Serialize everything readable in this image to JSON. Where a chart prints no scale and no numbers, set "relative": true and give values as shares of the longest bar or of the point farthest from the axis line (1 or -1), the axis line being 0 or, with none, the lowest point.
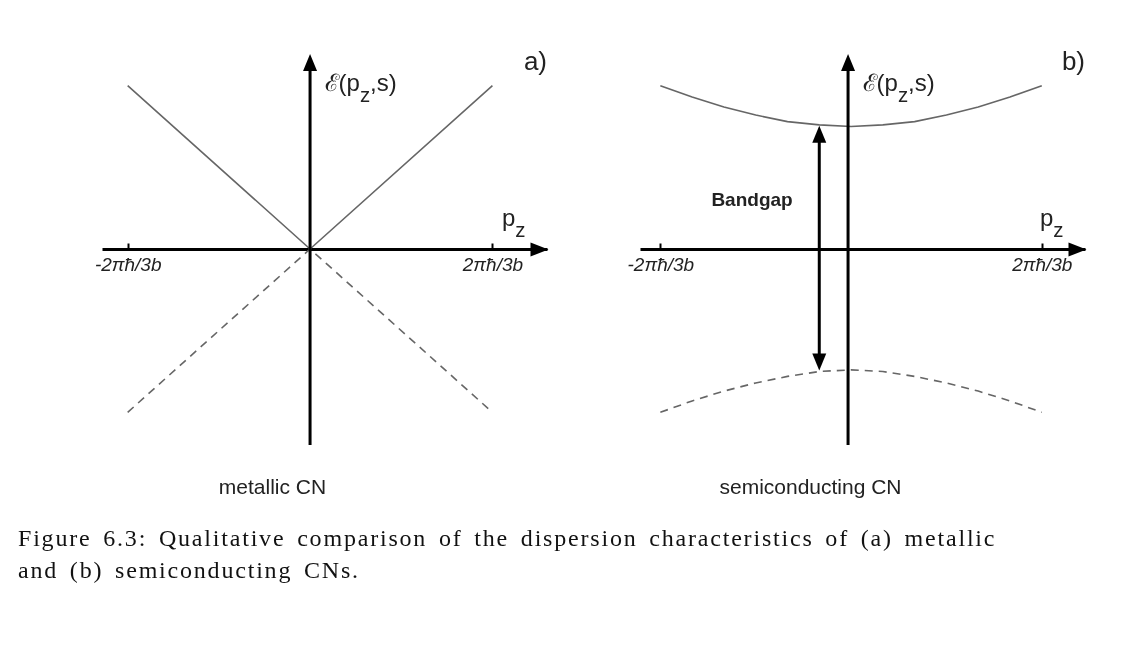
{
  "chart_data": [
    {
      "type": "line",
      "title": "metallic CN",
      "xlabel": "p$_{z}$",
      "ylabel": "ℰ(p$_{z}$,s)",
      "relative": true,
      "tick_labels": "x",
      "categories": [
        "-2πħ/3b",
        null,
        "2πħ/3b"
      ],
      "annotations": [
        "a)"
      ],
      "series": [
        {
          "color": "#666666",
          "line_style": "solid",
          "values": [
            1,
            0,
            1
          ]
        },
        {
          "color": "#666666",
          "line_style": "dashed",
          "values": [
            -1,
            0,
            -1
          ]
        }
      ]
    },
    {
      "type": "line",
      "title": "semiconducting CN",
      "xlabel": "p$_{z}$",
      "ylabel": "ℰ(p$_{z}$,s)",
      "relative": true,
      "tick_labels": "x",
      "categories": [
        "-2πħ/3b",
        null,
        null,
        null,
        null,
        null,
        null,
        null,
        null,
        null,
        null,
        null,
        "2πħ/3b"
      ],
      "annotations": [
        "b)",
        "Bandgap"
      ],
      "series": [
        {
          "color": "#666666",
          "line_style": "solid",
          "values": [
            1.0,
            0.93,
            0.87,
            0.82,
            0.78,
            0.76,
            0.75,
            0.76,
            0.78,
            0.82,
            0.87,
            0.93,
            1.0
          ]
        },
        {
          "color": "#666666",
          "line_style": "dashed",
          "values": [
            -1.0,
            -0.93,
            -0.87,
            -0.82,
            -0.78,
            -0.75,
            -0.74,
            -0.75,
            -0.78,
            -0.82,
            -0.87,
            -0.93,
            -1.0
          ]
        }
      ]
    },
    {
      "type": "other",
      "annotations": [
        "Figure 6.3: Qualitative comparison of the dispersion characteristics of (a) metallic and (b) semiconducting CNs."
      ]
    }
  ]
}
